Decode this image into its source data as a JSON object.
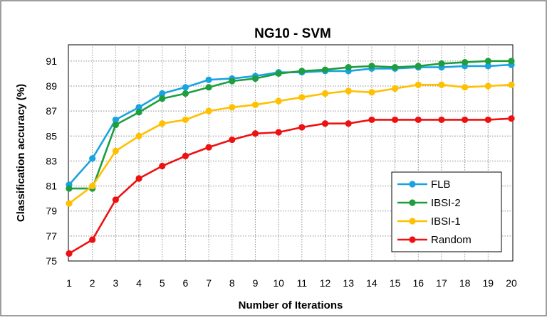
{
  "chart_data": {
    "type": "line",
    "title": "NG10 - SVM",
    "xlabel": "Number of Iterations",
    "ylabel": "Classification accuracy (%)",
    "x": [
      1,
      2,
      3,
      4,
      5,
      6,
      7,
      8,
      9,
      10,
      11,
      12,
      13,
      14,
      15,
      16,
      17,
      18,
      19,
      20
    ],
    "x_tick_labels": [
      "1",
      "2",
      "3",
      "4",
      "5",
      "6",
      "7",
      "8",
      "9",
      "10",
      "11",
      "12",
      "13",
      "14",
      "15",
      "16",
      "17",
      "18",
      "19",
      "20"
    ],
    "ylim": [
      75,
      92.3
    ],
    "y_ticks": [
      75,
      77,
      79,
      81,
      83,
      85,
      87,
      89,
      91
    ],
    "y_tick_labels": [
      "75",
      "77",
      "79",
      "81",
      "83",
      "85",
      "87",
      "89",
      "91"
    ],
    "grid": "dotted",
    "legend_position": "bottom-right",
    "series": [
      {
        "name": "FLB",
        "color": "#1aa3e0",
        "values": [
          81.1,
          83.2,
          86.3,
          87.3,
          88.4,
          88.9,
          89.5,
          89.6,
          89.8,
          90.1,
          90.1,
          90.2,
          90.2,
          90.4,
          90.4,
          90.5,
          90.5,
          90.6,
          90.6,
          90.7
        ]
      },
      {
        "name": "IBSI-2",
        "color": "#1e9e3e",
        "values": [
          80.8,
          80.8,
          85.9,
          86.9,
          88.0,
          88.4,
          88.9,
          89.4,
          89.6,
          90.0,
          90.2,
          90.3,
          90.5,
          90.6,
          90.5,
          90.6,
          90.8,
          90.9,
          91.0,
          91.0
        ]
      },
      {
        "name": "IBSI-1",
        "color": "#ffc000",
        "values": [
          79.6,
          81.0,
          83.8,
          85.0,
          86.0,
          86.3,
          87.0,
          87.3,
          87.5,
          87.8,
          88.1,
          88.4,
          88.6,
          88.5,
          88.8,
          89.1,
          89.1,
          88.9,
          89.0,
          89.1
        ]
      },
      {
        "name": "Random",
        "color": "#ee1111",
        "values": [
          75.6,
          76.7,
          79.9,
          81.6,
          82.6,
          83.4,
          84.1,
          84.7,
          85.2,
          85.3,
          85.7,
          86.0,
          86.0,
          86.3,
          86.3,
          86.3,
          86.3,
          86.3,
          86.3,
          86.4
        ]
      }
    ]
  }
}
